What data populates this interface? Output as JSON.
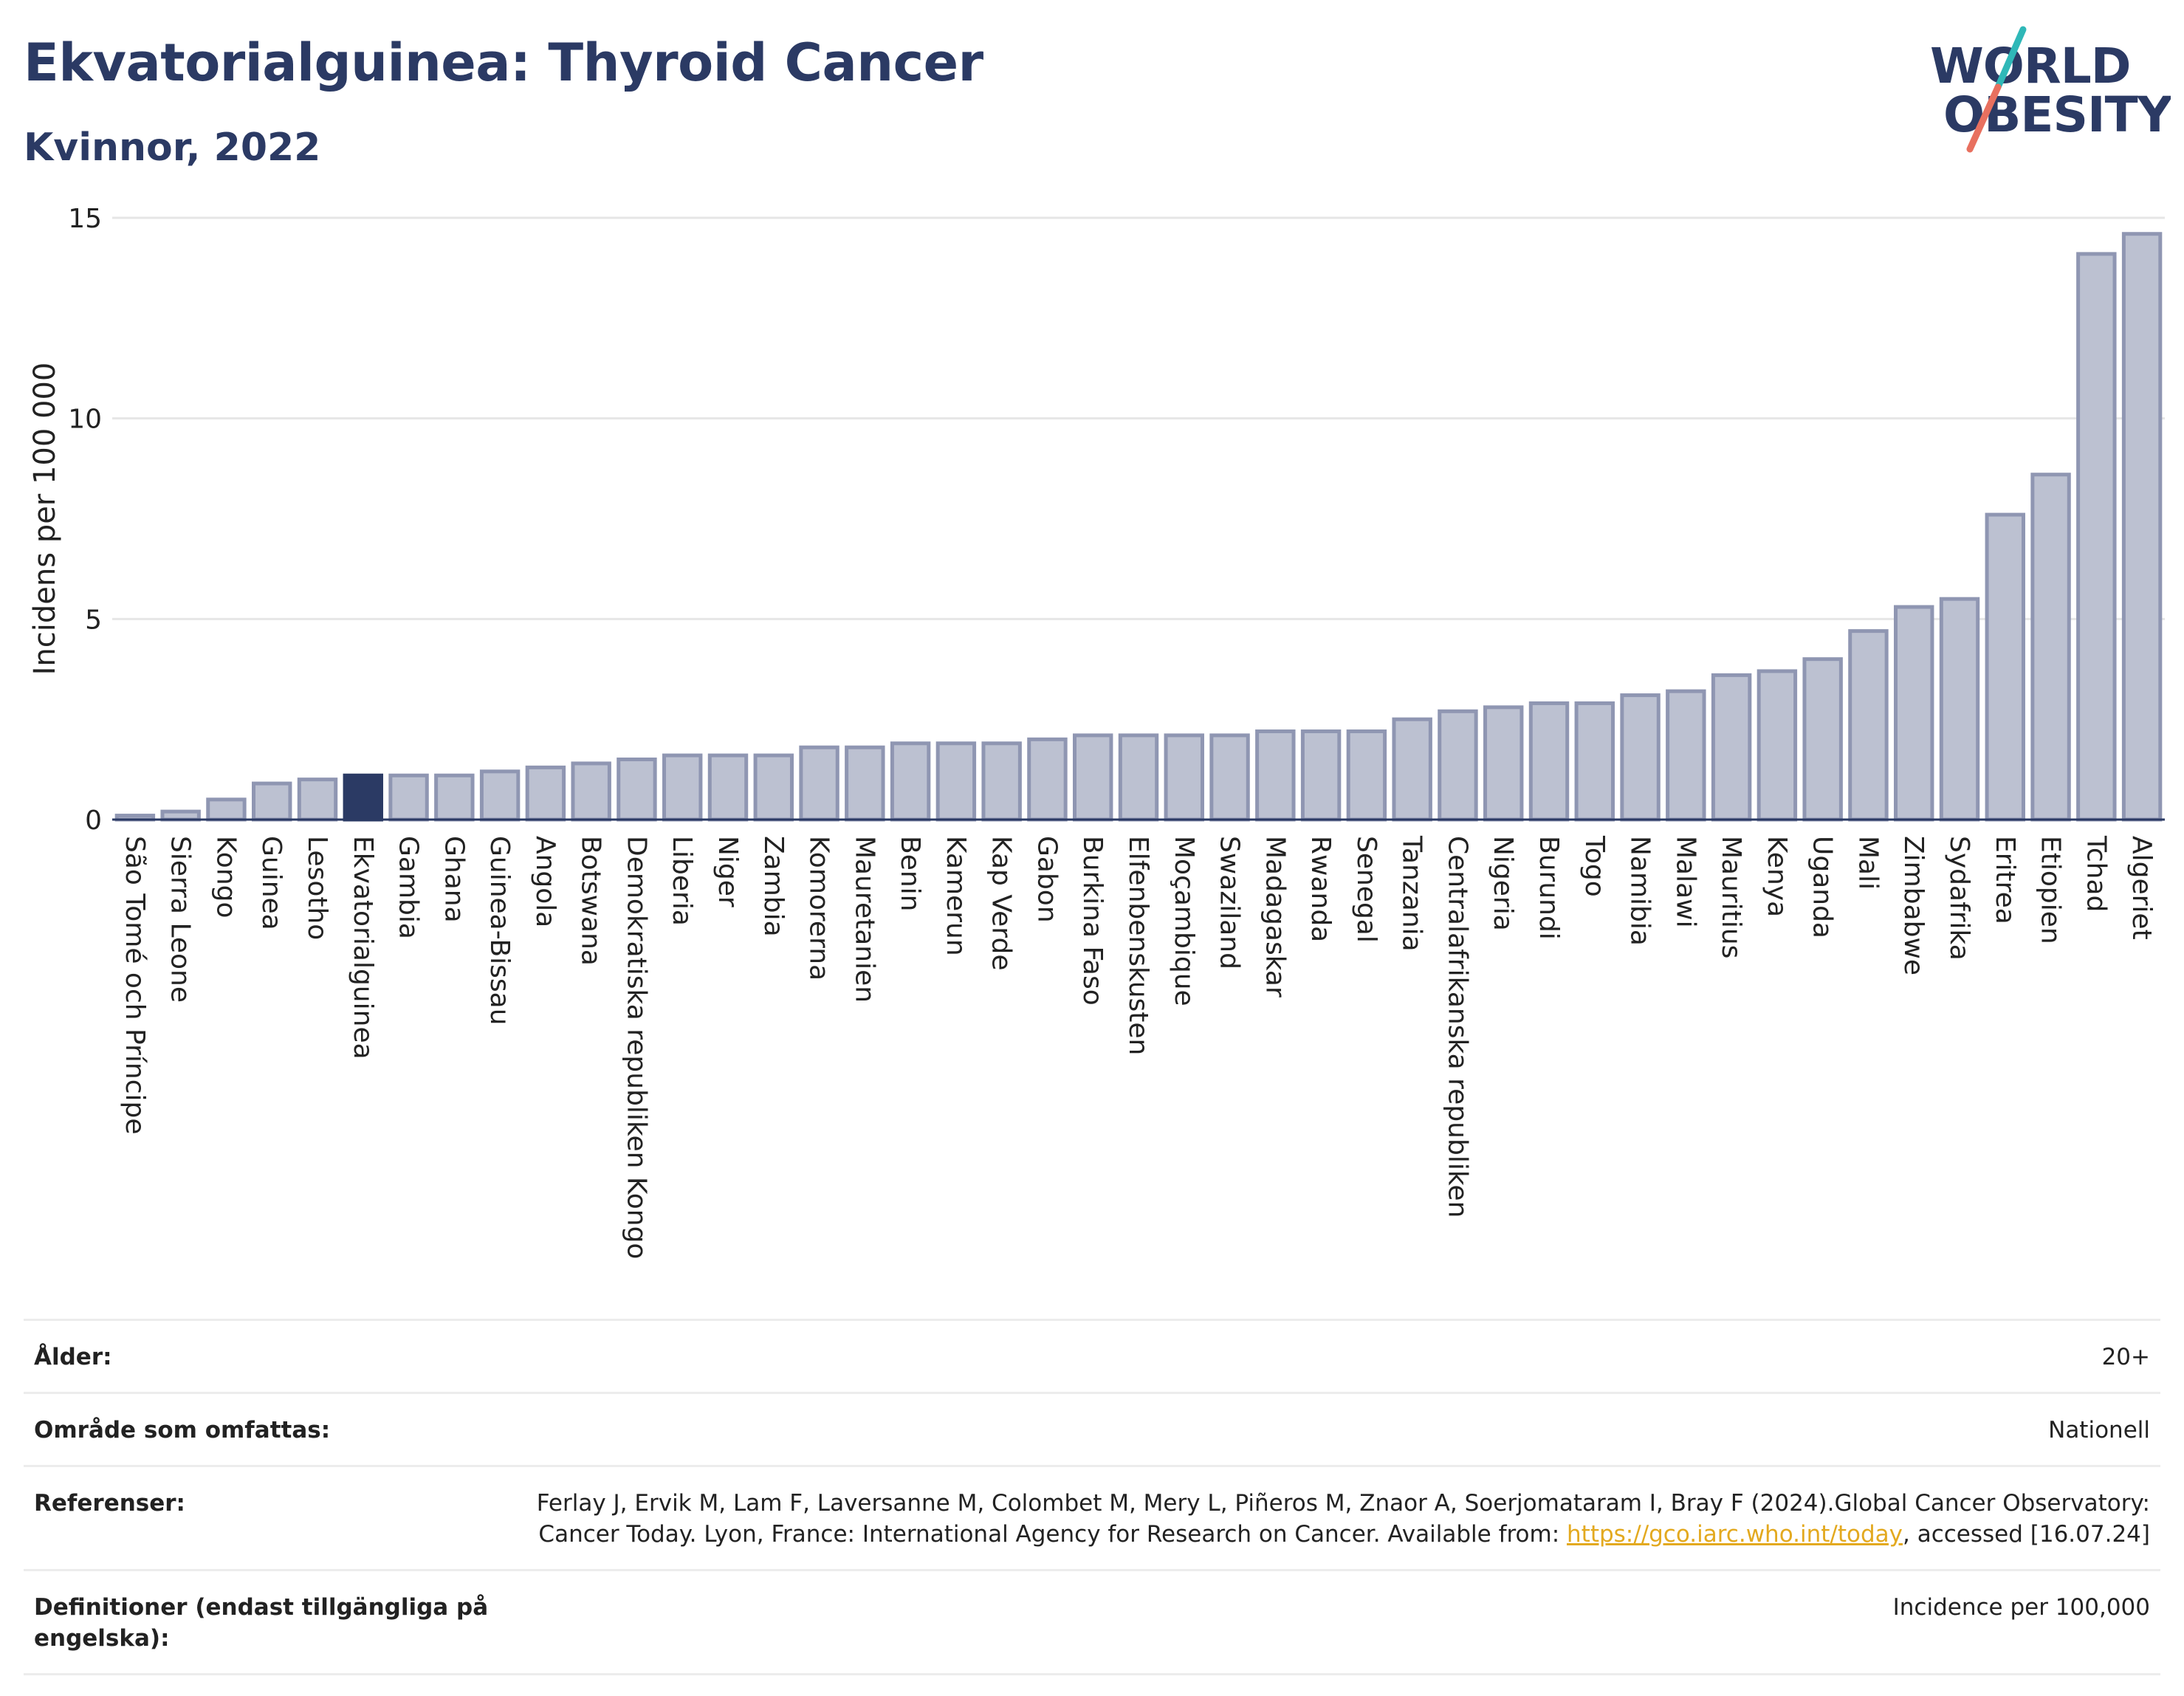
{
  "header": {
    "title": "Ekvatorialguinea: Thyroid Cancer",
    "subtitle": "Kvinnor, 2022",
    "logo_line1": "WORLD",
    "logo_line2": "OBESITY"
  },
  "colors": {
    "title": "#2b3a64",
    "bar_fill": "#bcc1d1",
    "bar_stroke": "#8f96b2",
    "highlight_fill": "#2b3a64",
    "logo_teal": "#2fb8b8",
    "logo_coral": "#e8705f",
    "link": "#e3a91f"
  },
  "chart_data": {
    "type": "bar",
    "title": "Ekvatorialguinea: Thyroid Cancer",
    "subtitle": "Kvinnor, 2022",
    "xlabel": "",
    "ylabel": "Incidens per 100 000",
    "ylim": [
      0,
      15
    ],
    "yticks": [
      0,
      5,
      10,
      15
    ],
    "grid": true,
    "highlight": "Ekvatorialguinea",
    "categories": [
      "São Tomé och Príncipe",
      "Sierra Leone",
      "Kongo",
      "Guinea",
      "Lesotho",
      "Ekvatorialguinea",
      "Gambia",
      "Ghana",
      "Guinea-Bissau",
      "Angola",
      "Botswana",
      "Demokratiska republiken Kongo",
      "Liberia",
      "Niger",
      "Zambia",
      "Komorerna",
      "Mauretanien",
      "Benin",
      "Kamerun",
      "Kap Verde",
      "Gabon",
      "Burkina Faso",
      "Elfenbenskusten",
      "Moçambique",
      "Swaziland",
      "Madagaskar",
      "Rwanda",
      "Senegal",
      "Tanzania",
      "Centralafrikanska republiken",
      "Nigeria",
      "Burundi",
      "Togo",
      "Namibia",
      "Malawi",
      "Mauritius",
      "Kenya",
      "Uganda",
      "Mali",
      "Zimbabwe",
      "Sydafrika",
      "Eritrea",
      "Etiopien",
      "Tchad",
      "Algeriet"
    ],
    "values": [
      0.1,
      0.2,
      0.5,
      0.9,
      1.0,
      1.1,
      1.1,
      1.1,
      1.2,
      1.3,
      1.4,
      1.5,
      1.6,
      1.6,
      1.6,
      1.8,
      1.8,
      1.9,
      1.9,
      1.9,
      2.0,
      2.1,
      2.1,
      2.1,
      2.1,
      2.2,
      2.2,
      2.2,
      2.5,
      2.7,
      2.8,
      2.9,
      2.9,
      3.1,
      3.2,
      3.6,
      3.7,
      4.0,
      4.7,
      5.3,
      5.5,
      7.6,
      8.6,
      14.1,
      14.6
    ]
  },
  "meta": {
    "rows": [
      {
        "label": "Ålder:",
        "value": "20+"
      },
      {
        "label": "Område som omfattas:",
        "value": "Nationell"
      }
    ],
    "references": {
      "label": "Referenser:",
      "text_part1": "Ferlay J, Ervik M, Lam F, Laversanne M, Colombet M, Mery L, Piñeros M, Znaor A, Soerjomataram I, Bray F (2024).Global Cancer Observatory: Cancer Today. Lyon, France: International Agency for Research on Cancer. Available from: ",
      "link": "https://gco.iarc.who.int/today",
      "text_part2": ", accessed [16.07.24]"
    },
    "definitions": {
      "label": "Definitioner (endast tillgängliga på engelska):",
      "value": "Incidence per 100,000"
    }
  }
}
